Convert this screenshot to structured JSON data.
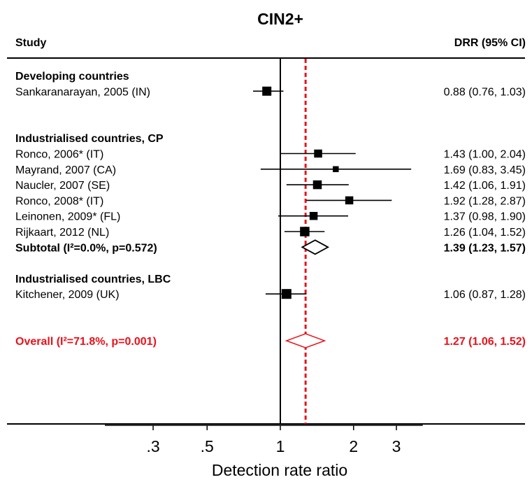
{
  "chart_data": {
    "type": "forest",
    "title": "CIN2+",
    "col_study": "Study",
    "col_ci": "DRR (95% CI)",
    "xlabel": "Detection rate ratio",
    "xscale": "log",
    "xlim": [
      0.19,
      3.85
    ],
    "ticks": [
      {
        "value": 0.3,
        "label": ".3"
      },
      {
        "value": 0.5,
        "label": ".5"
      },
      {
        "value": 1,
        "label": "1"
      },
      {
        "value": 2,
        "label": "2"
      },
      {
        "value": 3,
        "label": "3"
      }
    ],
    "null_line": 1,
    "overall_line": 1.27,
    "rows": [
      {
        "kind": "header",
        "label": "Developing countries"
      },
      {
        "kind": "study",
        "label": "Sankaranarayan, 2005 (IN)",
        "est": 0.88,
        "lo": 0.76,
        "hi": 1.03,
        "ci_text": "0.88 (0.76, 1.03)",
        "weight": 0.9
      },
      {
        "kind": "blank"
      },
      {
        "kind": "blank"
      },
      {
        "kind": "header",
        "label": "Industrialised countries, CP"
      },
      {
        "kind": "study",
        "label": "Ronco, 2006* (IT)",
        "est": 1.43,
        "lo": 1.0,
        "hi": 2.04,
        "ci_text": "1.43 (1.00, 2.04)",
        "weight": 0.75
      },
      {
        "kind": "study",
        "label": "Mayrand, 2007 (CA)",
        "est": 1.69,
        "lo": 0.83,
        "hi": 3.45,
        "ci_text": "1.69 (0.83, 3.45)",
        "weight": 0.45
      },
      {
        "kind": "study",
        "label": "Naucler, 2007 (SE)",
        "est": 1.42,
        "lo": 1.06,
        "hi": 1.91,
        "ci_text": "1.42 (1.06, 1.91)",
        "weight": 0.85
      },
      {
        "kind": "study",
        "label": "Ronco, 2008* (IT)",
        "est": 1.92,
        "lo": 1.28,
        "hi": 2.87,
        "ci_text": "1.92 (1.28, 2.87)",
        "weight": 0.75
      },
      {
        "kind": "study",
        "label": "Leinonen, 2009* (FL)",
        "est": 1.37,
        "lo": 0.98,
        "hi": 1.9,
        "ci_text": "1.37 (0.98, 1.90)",
        "weight": 0.75
      },
      {
        "kind": "study",
        "label": "Rijkaart, 2012 (NL)",
        "est": 1.26,
        "lo": 1.04,
        "hi": 1.52,
        "ci_text": "1.26 (1.04, 1.52)",
        "weight": 0.95
      },
      {
        "kind": "subtotal",
        "label": "Subtotal  (I²=0.0%, p=0.572)",
        "est": 1.39,
        "lo": 1.23,
        "hi": 1.57,
        "ci_text": "1.39 (1.23, 1.57)"
      },
      {
        "kind": "blank"
      },
      {
        "kind": "header",
        "label": "Industrialised countries, LBC"
      },
      {
        "kind": "study",
        "label": "Kitchener, 2009 (UK)",
        "est": 1.06,
        "lo": 0.87,
        "hi": 1.28,
        "ci_text": "1.06 (0.87, 1.28)",
        "weight": 1.0
      },
      {
        "kind": "blank"
      },
      {
        "kind": "blank"
      },
      {
        "kind": "overall",
        "label": "Overall  (I²=71.8%, p=0.001)",
        "est": 1.27,
        "lo": 1.06,
        "hi": 1.52,
        "ci_text": "1.27 (1.06, 1.52)"
      }
    ],
    "colors": {
      "text": "#000000",
      "overall": "#e8121b",
      "reference_line": "#e8121b"
    }
  }
}
